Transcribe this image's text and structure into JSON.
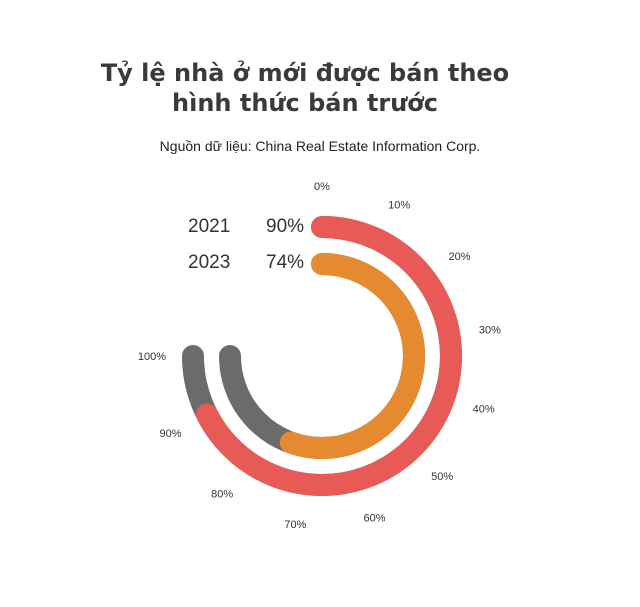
{
  "title_lines": [
    "Tỷ lệ nhà ở mới được bán theo",
    "hình thức bán trước"
  ],
  "subtitle": "Nguồn dữ liệu: China Real Estate Information Corp.",
  "colors": {
    "series_2021": "#e85a56",
    "series_2023": "#e58a2e",
    "remainder": "#6b6b6b",
    "text": "#333333"
  },
  "chart_data": {
    "type": "radial-bar",
    "scale_max": 100,
    "tick_labels": [
      "0%",
      "10%",
      "20%",
      "30%",
      "40%",
      "50%",
      "60%",
      "70%",
      "80%",
      "90%",
      "100%"
    ],
    "series": [
      {
        "name": "2021",
        "value": 90,
        "value_label": "90%"
      },
      {
        "name": "2023",
        "value": 74,
        "value_label": "74%"
      }
    ]
  }
}
